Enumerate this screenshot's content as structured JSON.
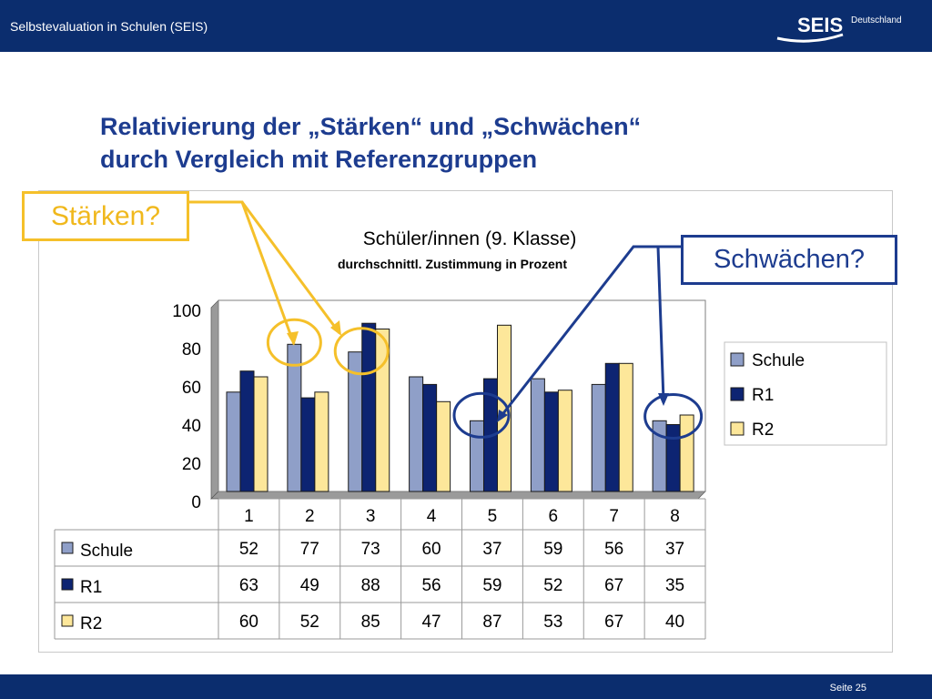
{
  "header": {
    "title": "Selbstevaluation in Schulen (SEIS)",
    "logo_text": "SEIS",
    "logo_subtext": "Deutschland"
  },
  "slide": {
    "title_line1": "Relativierung der „Stärken“ und „Schwächen“",
    "title_line2": "durch Vergleich mit Referenzgruppen"
  },
  "callouts": {
    "strengths": "Stärken?",
    "weaknesses": "Schwächen?"
  },
  "footer": {
    "page": "Seite 25"
  },
  "colors": {
    "bar_schule": "#8f9fc8",
    "bar_r1": "#0d2472",
    "bar_r2": "#fde79a",
    "header_bg": "#0b2d6e",
    "title_blue": "#1d3c8f",
    "highlight_yellow": "#f5c02a"
  },
  "chart_data": {
    "type": "bar",
    "title": "Schüler/innen (9. Klasse)",
    "subtitle": "durchschnittl. Zustimmung in Prozent",
    "categories": [
      "1",
      "2",
      "3",
      "4",
      "5",
      "6",
      "7",
      "8"
    ],
    "series": [
      {
        "name": "Schule",
        "values": [
          52,
          77,
          73,
          60,
          37,
          59,
          56,
          37
        ]
      },
      {
        "name": "R1",
        "values": [
          63,
          49,
          88,
          56,
          59,
          52,
          67,
          35
        ]
      },
      {
        "name": "R2",
        "values": [
          60,
          52,
          85,
          47,
          87,
          53,
          67,
          40
        ]
      }
    ],
    "ylim": [
      0,
      100
    ],
    "yticks": [
      0,
      20,
      40,
      60,
      80,
      100
    ],
    "grid": false,
    "legend": "right",
    "data_table": true,
    "highlighted_strengths": [
      "2",
      "3"
    ],
    "highlighted_weaknesses": [
      "5",
      "8"
    ]
  }
}
